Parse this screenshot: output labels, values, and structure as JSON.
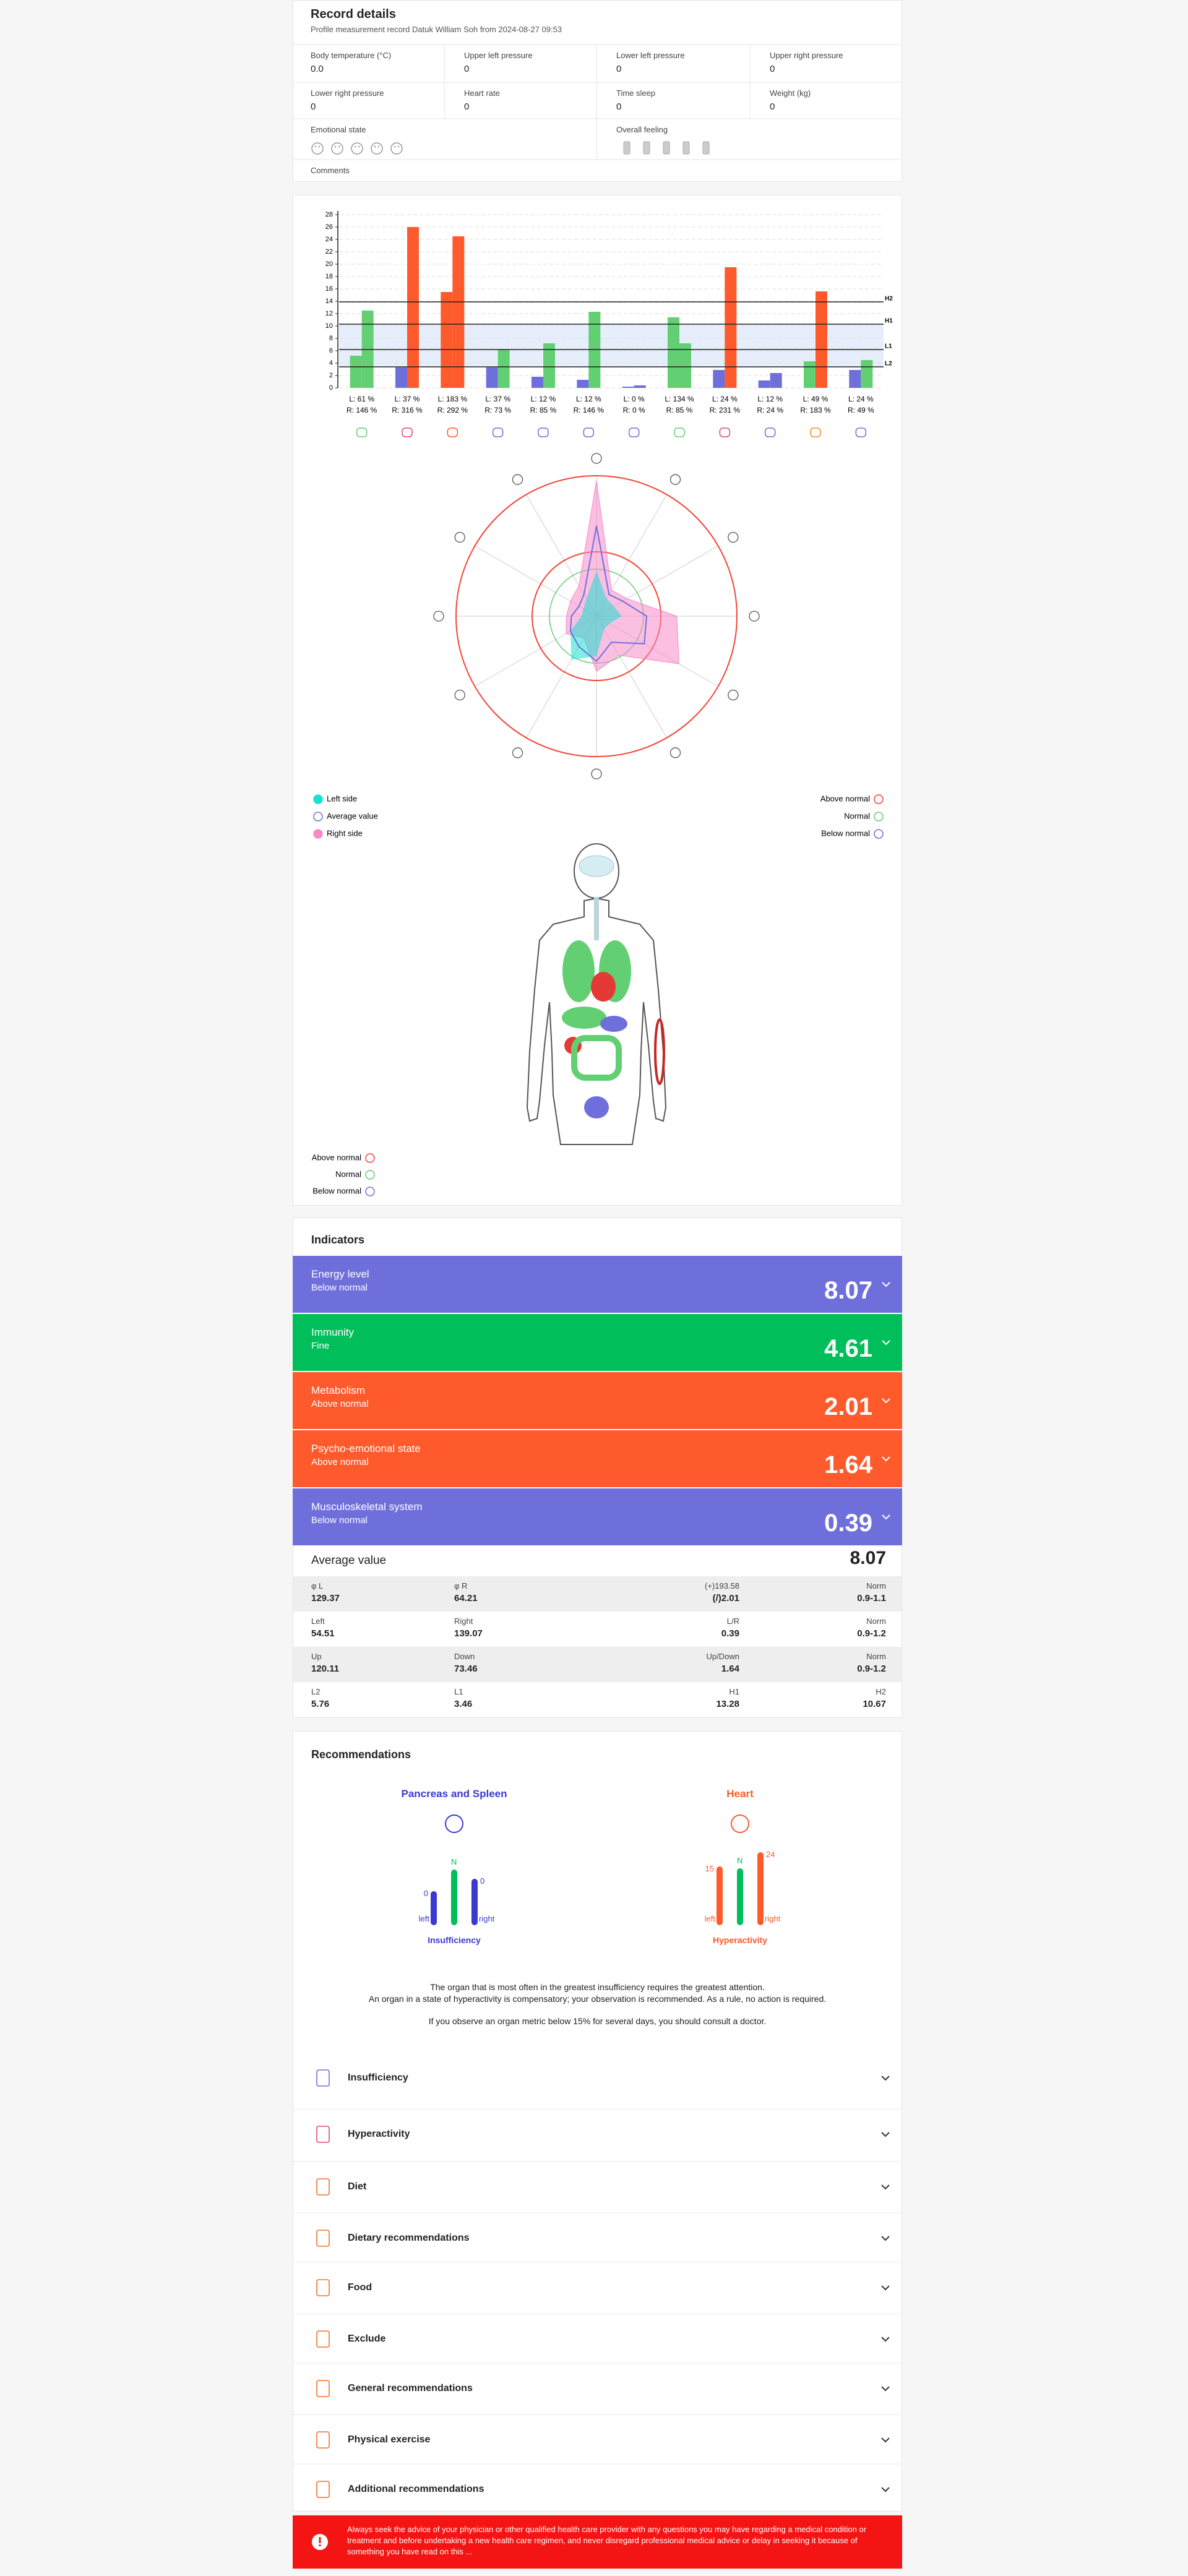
{
  "record": {
    "title": "Record details",
    "subtitle": "Profile measurement record Datuk William Soh from 2024-08-27 09:53",
    "fields": [
      {
        "label": "Body temperature (°C)",
        "value": "0.0"
      },
      {
        "label": "Upper left pressure",
        "value": "0"
      },
      {
        "label": "Lower left pressure",
        "value": "0"
      },
      {
        "label": "Upper right pressure",
        "value": "0"
      },
      {
        "label": "Lower right pressure",
        "value": "0"
      },
      {
        "label": "Heart rate",
        "value": "0"
      },
      {
        "label": "Time sleep",
        "value": "0"
      },
      {
        "label": "Weight (kg)",
        "value": "0"
      }
    ],
    "emotional_state": "Emotional state",
    "overall_feeling": "Overall feeling",
    "comments": "Comments"
  },
  "chart_data": [
    {
      "type": "bar",
      "categories": [
        {
          "left": "L: 61 %",
          "right": "R: 146 %"
        },
        {
          "left": "L: 37 %",
          "right": "R: 316 %"
        },
        {
          "left": "L: 183 %",
          "right": "R: 292 %"
        },
        {
          "left": "L: 37 %",
          "right": "R: 73 %"
        },
        {
          "left": "L: 12 %",
          "right": "R: 85 %"
        },
        {
          "left": "L: 12 %",
          "right": "R: 146 %"
        },
        {
          "left": "L: 0 %",
          "right": "R: 0 %"
        },
        {
          "left": "L: 134 %",
          "right": "R: 85 %"
        },
        {
          "left": "L: 24 %",
          "right": "R: 231 %"
        },
        {
          "left": "L: 12 %",
          "right": "R: 24 %"
        },
        {
          "left": "L: 49 %",
          "right": "R: 183 %"
        },
        {
          "left": "L: 24 %",
          "right": "R: 49 %"
        }
      ],
      "series": [
        {
          "values": [
            5.2,
            3.3,
            15.5,
            3.3,
            1.8,
            1.3,
            0.2,
            11.4,
            2.9,
            1.2,
            4.3,
            2.9
          ],
          "colors": [
            "#63cf73",
            "#6f6fdc",
            "#ff5a2c",
            "#6f6fdc",
            "#6f6fdc",
            "#6f6fdc",
            "#6f6fdc",
            "#63cf73",
            "#6f6fdc",
            "#6f6fdc",
            "#63cf73",
            "#6f6fdc"
          ]
        },
        {
          "values": [
            12.5,
            26,
            24.5,
            6.2,
            7.2,
            12.3,
            0.4,
            7.2,
            19.5,
            2.4,
            15.6,
            4.5
          ],
          "colors": [
            "#63cf73",
            "#ff5a2c",
            "#ff5a2c",
            "#63cf73",
            "#63cf73",
            "#63cf73",
            "#6f6fdc",
            "#63cf73",
            "#ff5a2c",
            "#6f6fdc",
            "#ff5a2c",
            "#63cf73"
          ]
        }
      ],
      "reference_lines": [
        {
          "label": "H2",
          "value": 13.9
        },
        {
          "label": "H1",
          "value": 10.3
        },
        {
          "label": "L1",
          "value": 6.2
        },
        {
          "label": "L2",
          "value": 3.4
        }
      ],
      "ylim": [
        0,
        28
      ],
      "yticks": [
        0,
        2,
        4,
        6,
        8,
        10,
        12,
        14,
        16,
        18,
        20,
        22,
        24,
        26,
        28
      ],
      "grid": true
    },
    {
      "type": "radar",
      "rlim": [
        0,
        28
      ],
      "series": [
        {
          "name": "Left side",
          "color": "#19e0d0",
          "values": [
            9,
            4,
            4,
            5,
            3,
            3,
            8,
            10,
            6,
            3,
            3,
            4
          ]
        },
        {
          "name": "Average value",
          "color": "#6f6fdc",
          "values": [
            18,
            5,
            6,
            10,
            11,
            6,
            9,
            7,
            6,
            5,
            4,
            5
          ]
        },
        {
          "name": "Right side",
          "color": "#f58ac8",
          "values": [
            27,
            6,
            7,
            16,
            19,
            9,
            11,
            5,
            7,
            6,
            6,
            7
          ]
        }
      ],
      "rings": [
        {
          "name": "Above normal",
          "color": "#f44336"
        },
        {
          "name": "Normal",
          "color": "#63cf73"
        },
        {
          "name": "Below normal",
          "color": "#6f6fdc"
        }
      ]
    }
  ],
  "body_legend": [
    {
      "name": "Above normal",
      "color": "#f44336"
    },
    {
      "name": "Normal",
      "color": "#63cf73"
    },
    {
      "name": "Below normal",
      "color": "#6f6fdc"
    }
  ],
  "indicators": {
    "title": "Indicators",
    "items": [
      {
        "name": "Energy level",
        "status": "Below normal",
        "value": "8.07",
        "color": "#6f6fdc"
      },
      {
        "name": "Immunity",
        "status": "Fine",
        "value": "4.61",
        "color": "#00bf5a"
      },
      {
        "name": "Metabolism",
        "status": "Above normal",
        "value": "2.01",
        "color": "#ff5a2c"
      },
      {
        "name": "Psycho-emotional state",
        "status": "Above normal",
        "value": "1.64",
        "color": "#ff5a2c"
      },
      {
        "name": "Musculoskeletal system",
        "status": "Below normal",
        "value": "0.39",
        "color": "#6f6fdc"
      }
    ],
    "average": {
      "label": "Average value",
      "value": "8.07"
    },
    "table": [
      [
        {
          "label": "φ L",
          "value": "129.37"
        },
        {
          "label": "φ R",
          "value": "64.21"
        },
        {
          "label": "(+)193.58",
          "value": "(/)2.01"
        },
        {
          "label": "Norm",
          "value": "0.9-1.1"
        }
      ],
      [
        {
          "label": "Left",
          "value": "54.51"
        },
        {
          "label": "Right",
          "value": "139.07"
        },
        {
          "label": "L/R",
          "value": "0.39"
        },
        {
          "label": "Norm",
          "value": "0.9-1.2"
        }
      ],
      [
        {
          "label": "Up",
          "value": "120.11"
        },
        {
          "label": "Down",
          "value": "73.46"
        },
        {
          "label": "Up/Down",
          "value": "1.64"
        },
        {
          "label": "Norm",
          "value": "0.9-1.2"
        }
      ],
      [
        {
          "label": "L2",
          "value": "5.76"
        },
        {
          "label": "L1",
          "value": "3.46"
        },
        {
          "label": "H1",
          "value": "13.28"
        },
        {
          "label": "H2",
          "value": "10.67"
        }
      ]
    ]
  },
  "recommendations": {
    "title": "Recommendations",
    "organs": [
      {
        "name": "Pancreas and Spleen",
        "color": "#3a3ad0",
        "left": "0",
        "norm": "N",
        "right": "0",
        "left_label": "left",
        "right_label": "right",
        "status": "Insufficiency"
      },
      {
        "name": "Heart",
        "color": "#ff5a2c",
        "left": "15",
        "norm": "N",
        "right": "24",
        "left_label": "left",
        "right_label": "right",
        "status": "Hyperactivity"
      }
    ],
    "notes": [
      "The organ that is most often in the greatest insufficiency requires the greatest attention.",
      "An organ in a state of hyperactivity is compensatory; your observation is recommended. As a rule, no action is required.",
      "If you observe an organ metric below 15% for several days, you should consult a doctor."
    ],
    "sections": [
      "Insufficiency",
      "Hyperactivity",
      "Diet",
      "Dietary recommendations",
      "Food",
      "Exclude",
      "General recommendations",
      "Physical exercise",
      "Additional recommendations"
    ]
  },
  "disclaimer": "Always seek the advice of your physician or other qualified health care provider with any questions you may have regarding a medical condition or treatment and before undertaking a new health care regimen, and never disregard professional medical advice or delay in seeking it because of something you have read on this ..."
}
